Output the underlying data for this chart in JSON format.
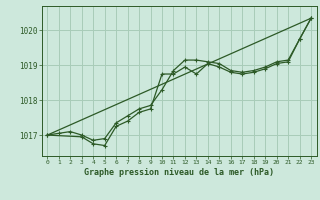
{
  "background_color": "#cde8dc",
  "line_color": "#2d5a27",
  "grid_color": "#a8ccb8",
  "xlabel": "Graphe pression niveau de la mer (hPa)",
  "xlim": [
    -0.5,
    23.5
  ],
  "ylim": [
    1016.4,
    1020.7
  ],
  "yticks": [
    1017,
    1018,
    1019,
    1020
  ],
  "xticks": [
    0,
    1,
    2,
    3,
    4,
    5,
    6,
    7,
    8,
    9,
    10,
    11,
    12,
    13,
    14,
    15,
    16,
    17,
    18,
    19,
    20,
    21,
    22,
    23
  ],
  "trend_x": [
    0,
    23
  ],
  "trend_y": [
    1017.0,
    1020.35
  ],
  "series1_x": [
    0,
    1,
    2,
    3,
    4,
    5,
    6,
    7,
    8,
    9,
    10,
    11,
    12,
    13,
    14,
    15,
    16,
    17,
    18,
    19,
    20,
    21,
    22,
    23
  ],
  "series1_y": [
    1017.0,
    1017.05,
    1017.1,
    1017.0,
    1016.85,
    1016.9,
    1017.35,
    1017.55,
    1017.75,
    1017.85,
    1018.3,
    1018.85,
    1019.15,
    1019.15,
    1019.1,
    1019.05,
    1018.85,
    1018.8,
    1018.85,
    1018.95,
    1019.1,
    1019.15,
    1019.75,
    1020.35
  ],
  "series2_x": [
    0,
    3,
    4,
    5,
    6,
    7,
    8,
    9,
    10,
    11,
    12,
    13,
    14,
    15,
    16,
    17,
    18,
    19,
    20,
    21,
    22,
    23
  ],
  "series2_y": [
    1017.0,
    1016.95,
    1016.75,
    1016.7,
    1017.25,
    1017.4,
    1017.65,
    1017.75,
    1018.75,
    1018.75,
    1018.95,
    1018.75,
    1019.05,
    1018.95,
    1018.8,
    1018.75,
    1018.8,
    1018.9,
    1019.05,
    1019.1,
    1019.75,
    1020.35
  ]
}
